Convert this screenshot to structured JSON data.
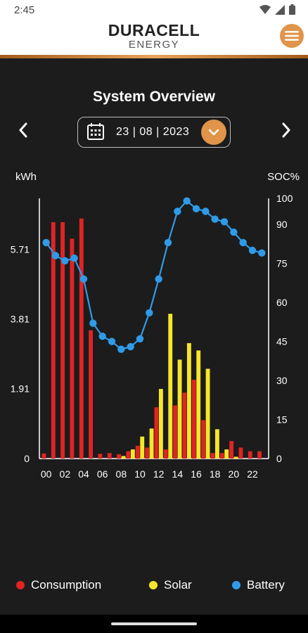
{
  "status_bar": {
    "time": "2:45",
    "icons": [
      "wifi-icon",
      "signal-icon",
      "battery-icon"
    ]
  },
  "header": {
    "brand_name": "DURACELL",
    "brand_sub": "ENERGY",
    "menu_icon": "menu-icon"
  },
  "page": {
    "title": "System Overview",
    "date": "23 | 08 | 2023"
  },
  "colors": {
    "accent": "#e0954a",
    "consumption": "#e02424",
    "solar": "#f5e62a",
    "battery": "#2f9be8"
  },
  "chart_data": {
    "type": "bar",
    "left_unit": "kWh",
    "right_unit": "SOC%",
    "left_ticks": [
      "0",
      "1.91",
      "3.81",
      "5.71"
    ],
    "right_ticks": [
      "0",
      "15",
      "30",
      "45",
      "60",
      "75",
      "90",
      "100"
    ],
    "ylim_left": [
      0,
      7.1
    ],
    "ylim_right": [
      0,
      100
    ],
    "x_tick_labels": [
      "00",
      "02",
      "04",
      "06",
      "08",
      "10",
      "12",
      "14",
      "16",
      "18",
      "20",
      "22"
    ],
    "hours": [
      0,
      1,
      2,
      3,
      4,
      5,
      6,
      7,
      8,
      9,
      10,
      11,
      12,
      13,
      14,
      15,
      16,
      17,
      18,
      19,
      20,
      21,
      22,
      23
    ],
    "series": [
      {
        "name": "Consumption",
        "kind": "bar",
        "values": [
          0.14,
          6.45,
          6.45,
          6.0,
          6.55,
          3.5,
          0.13,
          0.15,
          0.12,
          0.2,
          0.35,
          0.3,
          1.4,
          0.25,
          1.45,
          1.8,
          2.15,
          1.05,
          0.15,
          0.15,
          0.48,
          0.3,
          0.2,
          0.2
        ]
      },
      {
        "name": "Solar",
        "kind": "bar",
        "values": [
          0,
          0,
          0,
          0,
          0,
          0,
          0,
          0,
          0.07,
          0.25,
          0.6,
          0.82,
          1.9,
          3.95,
          2.7,
          3.15,
          2.95,
          2.45,
          0.8,
          0.25,
          0.05,
          0,
          0,
          0
        ]
      },
      {
        "name": "Battery",
        "kind": "line",
        "values": [
          83,
          78,
          76,
          77,
          69,
          52,
          47,
          45,
          42,
          43,
          46,
          56,
          69,
          83,
          95,
          99,
          96,
          95,
          92,
          91,
          87,
          83,
          80,
          79
        ]
      }
    ]
  },
  "legend": [
    {
      "label": "Consumption",
      "color": "#e02424"
    },
    {
      "label": "Solar",
      "color": "#f5e62a"
    },
    {
      "label": "Battery",
      "color": "#2f9be8"
    }
  ]
}
